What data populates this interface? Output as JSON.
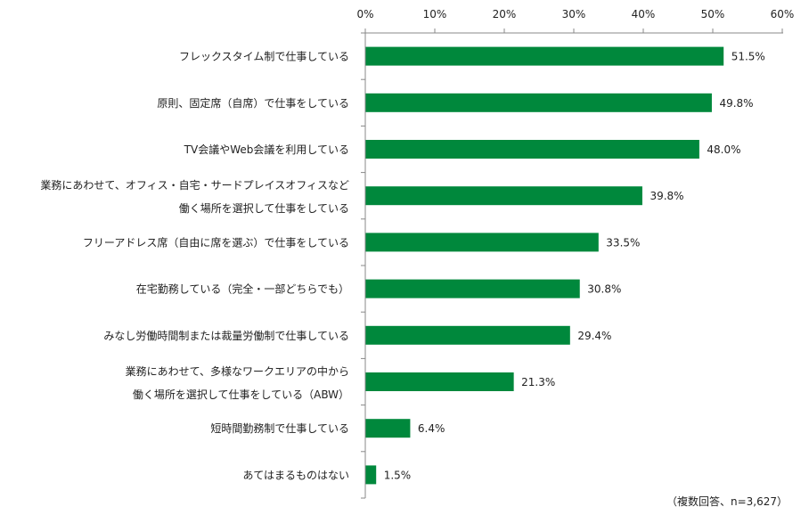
{
  "chart_data": {
    "type": "bar",
    "orientation": "horizontal",
    "categories": [
      [
        "フレックスタイム制で仕事している"
      ],
      [
        "原則、固定席（自席）で仕事をしている"
      ],
      [
        "TV会議やWeb会議を利用している"
      ],
      [
        "業務にあわせて、オフィス・自宅・サードプレイスオフィスなど",
        "働く場所を選択して仕事をしている"
      ],
      [
        "フリーアドレス席（自由に席を選ぶ）で仕事をしている"
      ],
      [
        "在宅勤務している（完全・一部どちらでも）"
      ],
      [
        "みなし労働時間制または裁量労働制で仕事している"
      ],
      [
        "業務にあわせて、多様なワークエリアの中から",
        "働く場所を選択して仕事をしている（ABW）"
      ],
      [
        "短時間勤務制で仕事している"
      ],
      [
        "あてはまるものはない"
      ]
    ],
    "values": [
      51.5,
      49.8,
      48.0,
      39.8,
      33.5,
      30.8,
      29.4,
      21.3,
      6.4,
      1.5
    ],
    "data_labels": [
      "51.5%",
      "49.8%",
      "48.0%",
      "39.8%",
      "33.5%",
      "30.8%",
      "29.4%",
      "21.3%",
      "6.4%",
      "1.5%"
    ],
    "x_ticks": [
      "0%",
      "10%",
      "20%",
      "30%",
      "40%",
      "50%",
      "60%"
    ],
    "xlim": [
      0,
      60
    ],
    "axis_position": "top",
    "grid": false,
    "bar_color": "#00883C",
    "note": "（複数回答、n=3,627）"
  }
}
